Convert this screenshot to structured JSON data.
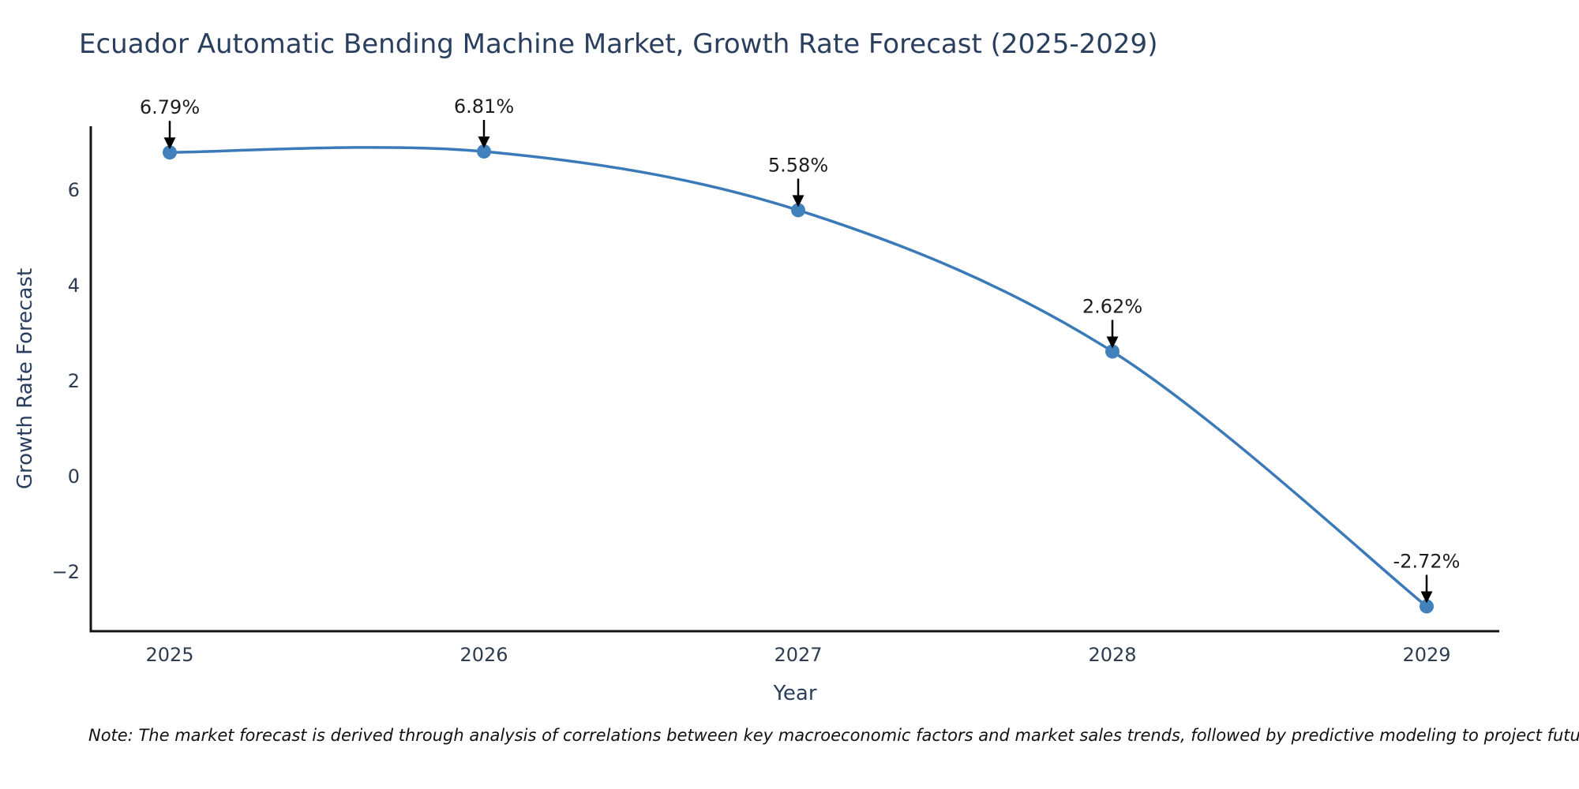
{
  "page": {
    "title": "Ecuador Automatic Bending Machine Market, Growth Rate Forecast (2025-2029)",
    "footnote": "Note: The market forecast is derived through analysis of correlations between key macroeconomic factors and market sales trends, followed by predictive modeling to project future sales"
  },
  "chart_data": {
    "type": "line",
    "title": "Ecuador Automatic Bending Machine Market, Growth Rate Forecast (2025-2029)",
    "xlabel": "Year",
    "ylabel": "Growth Rate Forecast",
    "categories": [
      "2025",
      "2026",
      "2027",
      "2028",
      "2029"
    ],
    "series": [
      {
        "name": "Growth Rate Forecast",
        "values": [
          6.79,
          6.81,
          5.58,
          2.62,
          -2.72
        ]
      }
    ],
    "point_labels": [
      "6.79%",
      "6.81%",
      "5.58%",
      "2.62%",
      "-2.72%"
    ],
    "yticks": [
      6,
      4,
      2,
      0,
      -2
    ],
    "ytick_labels": [
      "6",
      "4",
      "2",
      "0",
      "−2"
    ],
    "ylim": [
      -3.2,
      7.3
    ],
    "line_style": "spline",
    "grid": false,
    "legend_position": "none",
    "colors": {
      "line": "#3b7ab8",
      "marker": "#4181bc",
      "arrow": "#000000",
      "annotation_text": "#1c1c1c",
      "axis_line": "#111418",
      "tick_label": "#2f3b4f",
      "title": "#2a3f5f"
    }
  }
}
